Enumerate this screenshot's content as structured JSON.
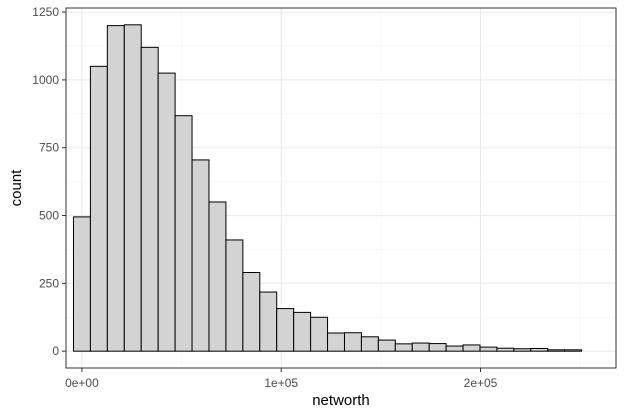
{
  "chart_data": {
    "type": "bar",
    "subtype": "histogram",
    "title": "",
    "xlabel": "networth",
    "ylabel": "count",
    "xlim": [
      -8000,
      268000
    ],
    "ylim": [
      -62,
      1265
    ],
    "grid": true,
    "bar_fill": "#d3d3d3",
    "bar_stroke": "#000000",
    "bin_width": 8500,
    "x_ticks": [
      {
        "value": 0,
        "label": "0e+00"
      },
      {
        "value": 100000,
        "label": "1e+05"
      },
      {
        "value": 200000,
        "label": "2e+05"
      }
    ],
    "y_ticks": [
      {
        "value": 0,
        "label": "0"
      },
      {
        "value": 250,
        "label": "250"
      },
      {
        "value": 500,
        "label": "500"
      },
      {
        "value": 750,
        "label": "750"
      },
      {
        "value": 1000,
        "label": "1000"
      },
      {
        "value": 1250,
        "label": "1250"
      }
    ],
    "bins": [
      {
        "start": -4250,
        "end": 4250,
        "count": 495
      },
      {
        "start": 4250,
        "end": 12750,
        "count": 1050
      },
      {
        "start": 12750,
        "end": 21250,
        "count": 1200
      },
      {
        "start": 21250,
        "end": 29750,
        "count": 1203
      },
      {
        "start": 29750,
        "end": 38250,
        "count": 1120
      },
      {
        "start": 38250,
        "end": 46750,
        "count": 1025
      },
      {
        "start": 46750,
        "end": 55250,
        "count": 868
      },
      {
        "start": 55250,
        "end": 63750,
        "count": 705
      },
      {
        "start": 63750,
        "end": 72250,
        "count": 550
      },
      {
        "start": 72250,
        "end": 80750,
        "count": 410
      },
      {
        "start": 80750,
        "end": 89250,
        "count": 290
      },
      {
        "start": 89250,
        "end": 97750,
        "count": 218
      },
      {
        "start": 97750,
        "end": 106250,
        "count": 157
      },
      {
        "start": 106250,
        "end": 114750,
        "count": 143
      },
      {
        "start": 114750,
        "end": 123250,
        "count": 125
      },
      {
        "start": 123250,
        "end": 131750,
        "count": 67
      },
      {
        "start": 131750,
        "end": 140250,
        "count": 68
      },
      {
        "start": 140250,
        "end": 148750,
        "count": 53
      },
      {
        "start": 148750,
        "end": 157250,
        "count": 41
      },
      {
        "start": 157250,
        "end": 165750,
        "count": 27
      },
      {
        "start": 165750,
        "end": 174250,
        "count": 30
      },
      {
        "start": 174250,
        "end": 182750,
        "count": 28
      },
      {
        "start": 182750,
        "end": 191250,
        "count": 19
      },
      {
        "start": 191250,
        "end": 199750,
        "count": 23
      },
      {
        "start": 199750,
        "end": 208250,
        "count": 15
      },
      {
        "start": 208250,
        "end": 216750,
        "count": 11
      },
      {
        "start": 216750,
        "end": 225250,
        "count": 9
      },
      {
        "start": 225250,
        "end": 233750,
        "count": 10
      },
      {
        "start": 233750,
        "end": 242250,
        "count": 5
      },
      {
        "start": 242250,
        "end": 250750,
        "count": 5
      }
    ]
  }
}
